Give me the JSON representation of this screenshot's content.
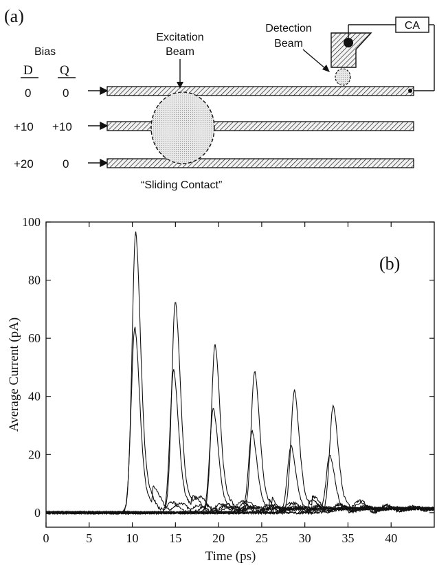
{
  "diagram_a": {
    "panel_label": "(a)",
    "bias_title": "Bias",
    "col_d": "D",
    "col_q": "Q",
    "rows": [
      {
        "d": "0",
        "q": "0"
      },
      {
        "d": "+10",
        "q": "+10"
      },
      {
        "d": "+20",
        "q": "0"
      }
    ],
    "excitation_label_1": "Excitation",
    "excitation_label_2": "Beam",
    "detection_label_1": "Detection",
    "detection_label_2": "Beam",
    "ca_label": "CA",
    "sliding_label": "“Sliding Contact”"
  },
  "chart_data": {
    "type": "line",
    "panel_label": "(b)",
    "xlabel": "Time (ps)",
    "ylabel": "Average Current (pA)",
    "xlim": [
      0,
      45
    ],
    "ylim": [
      -5,
      100
    ],
    "xticks": [
      0,
      5,
      10,
      15,
      20,
      25,
      30,
      35,
      40
    ],
    "yticks": [
      0,
      20,
      40,
      60,
      80,
      100
    ],
    "grid": false,
    "legend": "none",
    "peaks_series_a": [
      {
        "x": 10.4,
        "y": 97
      },
      {
        "x": 15.0,
        "y": 73
      },
      {
        "x": 19.6,
        "y": 58
      },
      {
        "x": 24.2,
        "y": 49
      },
      {
        "x": 28.8,
        "y": 42
      },
      {
        "x": 33.3,
        "y": 37
      }
    ],
    "peaks_series_b": [
      {
        "x": 10.3,
        "y": 64
      },
      {
        "x": 14.8,
        "y": 49
      },
      {
        "x": 19.4,
        "y": 36
      },
      {
        "x": 23.9,
        "y": 28
      },
      {
        "x": 28.4,
        "y": 23
      },
      {
        "x": 32.9,
        "y": 20
      }
    ]
  }
}
